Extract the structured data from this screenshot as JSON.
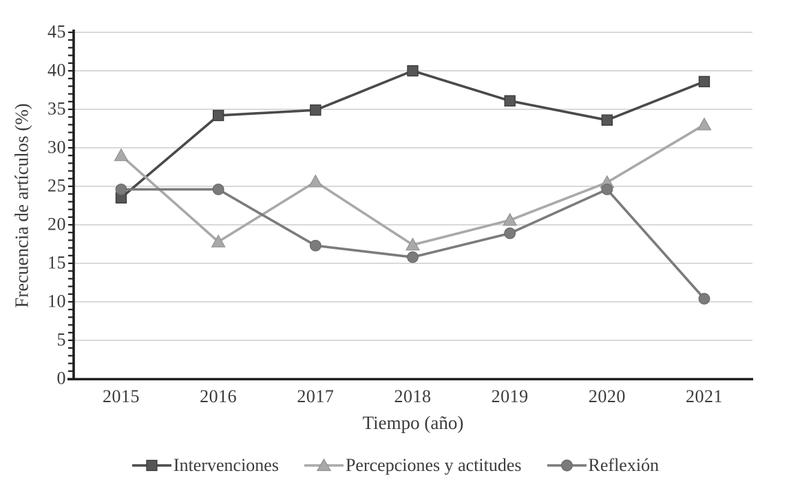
{
  "figure": {
    "background_color": "#ffffff",
    "axis_color": "#1e1e1e",
    "grid_color": "#d9d9d9",
    "text_color": "#3c3c3c"
  },
  "chart_data": {
    "type": "line",
    "title": "",
    "xlabel": "Tiempo (año)",
    "ylabel": "Frecuencia de artículos (%)",
    "categories": [
      "2015",
      "2016",
      "2017",
      "2018",
      "2019",
      "2020",
      "2021"
    ],
    "series": [
      {
        "name": "Intervenciones",
        "marker": "square",
        "line_color": "#4a4a4a",
        "marker_fill": "#565656",
        "marker_stroke": "#3c3c3c",
        "values": [
          23.5,
          34.2,
          34.9,
          40.0,
          36.1,
          33.6,
          38.6
        ]
      },
      {
        "name": "Percepciones y actitudes",
        "marker": "triangle",
        "line_color": "#a9a9a9",
        "marker_fill": "#a9a9a9",
        "marker_stroke": "#929292",
        "values": [
          29.0,
          17.8,
          25.6,
          17.4,
          20.6,
          25.5,
          33.0
        ]
      },
      {
        "name": "Reflexión",
        "marker": "circle",
        "line_color": "#7b7b7b",
        "marker_fill": "#7b7b7b",
        "marker_stroke": "#686868",
        "values": [
          24.6,
          24.6,
          17.3,
          15.8,
          18.9,
          24.6,
          10.4
        ]
      }
    ],
    "ylim": [
      0,
      45
    ],
    "yticks": [
      0,
      5,
      10,
      15,
      20,
      25,
      30,
      35,
      40,
      45
    ],
    "minor_tick_step": 1,
    "grid": "horizontal",
    "legend_position": "bottom"
  }
}
